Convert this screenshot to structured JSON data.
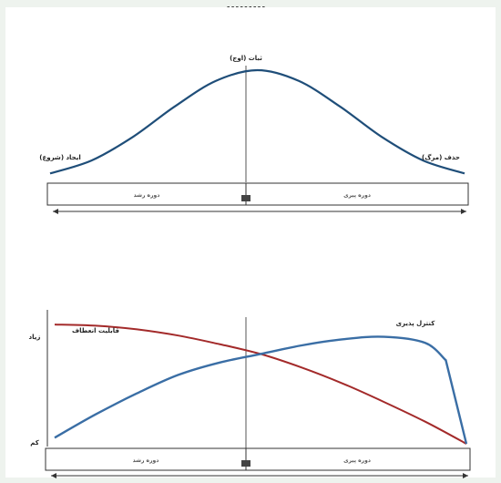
{
  "chart_data": [
    {
      "type": "line",
      "title": "",
      "peak_label": "ثبات (اوج)",
      "start_label": "ایجاد (شروع)",
      "end_label": "حذف (مرگ)",
      "phases": [
        {
          "id": "growth",
          "label": "دوره رشد"
        },
        {
          "id": "decline",
          "label": "دوره پیری"
        }
      ],
      "series": [
        {
          "color": "#1f4e79",
          "x": [
            0,
            0.1,
            0.2,
            0.3,
            0.4,
            0.5,
            0.6,
            0.7,
            0.8,
            0.9,
            1.0
          ],
          "values": [
            0.04,
            0.16,
            0.38,
            0.66,
            0.9,
            1.0,
            0.9,
            0.66,
            0.38,
            0.16,
            0.04
          ]
        }
      ]
    },
    {
      "type": "line",
      "title": "",
      "y_high_label": "زیاد",
      "y_low_label": "کم",
      "phases": [
        {
          "id": "growth",
          "label": "دوره رشد"
        },
        {
          "id": "decline",
          "label": "دوره پیری"
        }
      ],
      "series": [
        {
          "name": "قابلیت انعطاف",
          "color": "#a32a2a",
          "x": [
            0,
            0.1,
            0.2,
            0.3,
            0.4,
            0.5,
            0.6,
            0.7,
            0.8,
            0.9,
            1.0
          ],
          "values": [
            0.97,
            0.96,
            0.93,
            0.88,
            0.81,
            0.73,
            0.62,
            0.49,
            0.34,
            0.18,
            0.0
          ]
        },
        {
          "name": "کنترل پذیری",
          "color": "#3a6ea5",
          "x": [
            0,
            0.1,
            0.2,
            0.3,
            0.4,
            0.5,
            0.6,
            0.7,
            0.8,
            0.9,
            0.95,
            1.0
          ],
          "values": [
            0.05,
            0.24,
            0.41,
            0.56,
            0.66,
            0.73,
            0.8,
            0.85,
            0.87,
            0.82,
            0.68,
            0.0
          ]
        }
      ]
    }
  ],
  "top_strip_text": "ـ ـ ـ ـ ـ ـ ـ ـ ـ"
}
